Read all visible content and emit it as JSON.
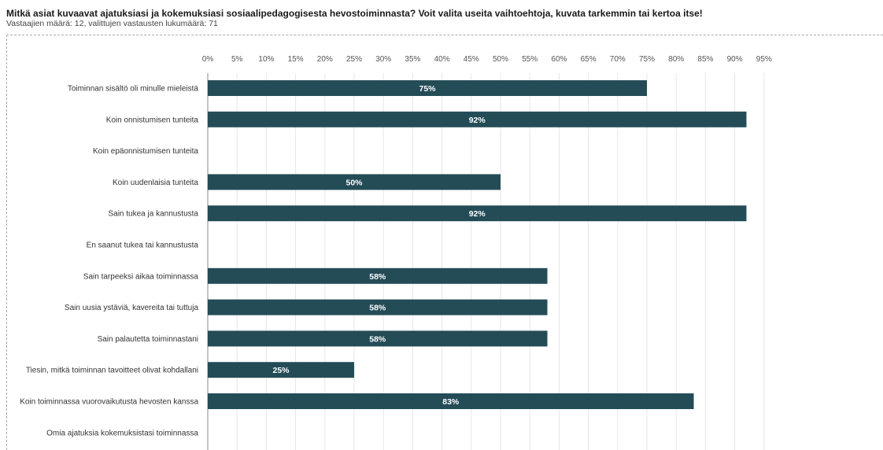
{
  "header": {
    "title": "Mitkä asiat kuvaavat ajatuksiasi ja kokemuksiasi sosiaalipedagogisesta hevostoiminnasta? Voit valita useita vaihtoehtoja, kuvata tarkemmin tai kertoa itse!",
    "subtitle": "Vastaajien määrä: 12, valittujen vastausten lukumäärä: 71"
  },
  "colors": {
    "bar": "#244c57",
    "grid": "#e6e6e6",
    "axis": "#888888"
  },
  "chart_data": {
    "type": "bar",
    "orientation": "horizontal",
    "title": "Mitkä asiat kuvaavat ajatuksiasi ja kokemuksiasi sosiaalipedagogisesta hevostoiminnasta? Voit valita useita vaihtoehtoja, kuvata tarkemmin tai kertoa itse!",
    "xlabel": "",
    "ylabel": "",
    "xlim": [
      0,
      100
    ],
    "x_ticks": [
      "0%",
      "5%",
      "10%",
      "15%",
      "20%",
      "25%",
      "30%",
      "35%",
      "40%",
      "45%",
      "50%",
      "55%",
      "60%",
      "65%",
      "70%",
      "75%",
      "80%",
      "85%",
      "90%",
      "95%"
    ],
    "grid": true,
    "categories": [
      "Toiminnan sisältö oli minulle mieleistä",
      "Koin onnistumisen tunteita",
      "Koin epäonnistumisen tunteita",
      "Koin uudenlaisia tunteita",
      "Sain tukea ja kannustusta",
      "En saanut tukea tai kannustusta",
      "Sain tarpeeksi aikaa toiminnassa",
      "Sain uusia ystäviä, kavereita tai tuttuja",
      "Sain palautetta toiminnastani",
      "Tiesin, mitkä toiminnan tavoitteet olivat kohdallani",
      "Koin toiminnassa vuorovaikutusta hevosten kanssa",
      "Omia ajatuksia kokemuksistasi toiminnassa"
    ],
    "values": [
      75,
      92,
      0,
      50,
      92,
      0,
      58,
      58,
      58,
      25,
      83,
      0
    ],
    "data_labels": [
      "75%",
      "92%",
      "",
      "50%",
      "92%",
      "",
      "58%",
      "58%",
      "58%",
      "25%",
      "83%",
      ""
    ]
  }
}
